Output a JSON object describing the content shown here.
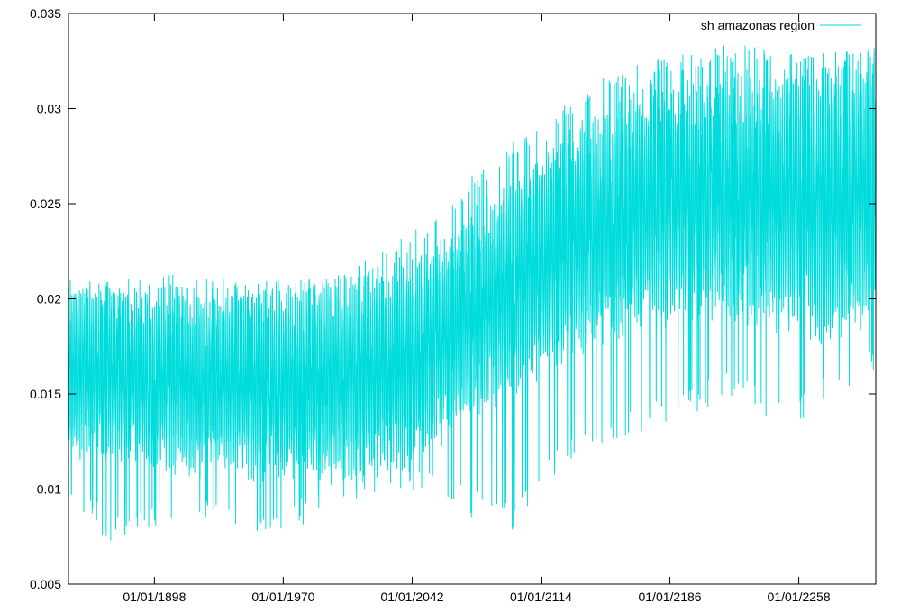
{
  "chart_data": {
    "type": "line",
    "title": "",
    "xlabel": "",
    "ylabel": "",
    "x_ticks": [
      "01/01/1898",
      "01/01/1970",
      "01/01/2042",
      "01/01/2114",
      "01/01/2186",
      "01/01/2258"
    ],
    "y_ticks": [
      "0.005",
      "0.01",
      "0.015",
      "0.02",
      "0.025",
      "0.03",
      "0.035"
    ],
    "xlim": [
      "1850-01-01",
      "2300-12-31"
    ],
    "ylim": [
      0.005,
      0.035
    ],
    "grid": false,
    "legend_position": "top-right",
    "series": [
      {
        "name": "sh amazonas region",
        "color": "#00dcdc",
        "style": "monthly seasonal oscillation",
        "envelope": {
          "x": [
            "1850-01-01",
            "1875-01-01",
            "1900-01-01",
            "1925-01-01",
            "1950-01-01",
            "1975-01-01",
            "2000-01-01",
            "2025-01-01",
            "2050-01-01",
            "2075-01-01",
            "2100-01-01",
            "2125-01-01",
            "2150-01-01",
            "2175-01-01",
            "2200-01-01",
            "2225-01-01",
            "2250-01-01",
            "2275-01-01",
            "2300-12-31"
          ],
          "upper": [
            0.0198,
            0.0197,
            0.0195,
            0.0193,
            0.0194,
            0.0196,
            0.0198,
            0.0203,
            0.0215,
            0.0233,
            0.0255,
            0.0273,
            0.0287,
            0.0297,
            0.0303,
            0.0306,
            0.0308,
            0.0309,
            0.031
          ],
          "lower": [
            0.0128,
            0.0125,
            0.012,
            0.0118,
            0.0117,
            0.0118,
            0.0118,
            0.012,
            0.013,
            0.015,
            0.0165,
            0.018,
            0.019,
            0.02,
            0.0205,
            0.0205,
            0.0198,
            0.0195,
            0.0205
          ],
          "spike_high": [
            0.0205,
            0.021,
            0.0212,
            0.0215,
            0.021,
            0.0212,
            0.0215,
            0.0225,
            0.024,
            0.0265,
            0.0285,
            0.03,
            0.0318,
            0.0325,
            0.033,
            0.0335,
            0.033,
            0.033,
            0.0333
          ],
          "spike_low": [
            0.0095,
            0.007,
            0.008,
            0.0085,
            0.0075,
            0.0078,
            0.009,
            0.01,
            0.0095,
            0.0085,
            0.0078,
            0.011,
            0.0125,
            0.013,
            0.014,
            0.015,
            0.0128,
            0.015,
            0.016
          ]
        }
      }
    ]
  }
}
